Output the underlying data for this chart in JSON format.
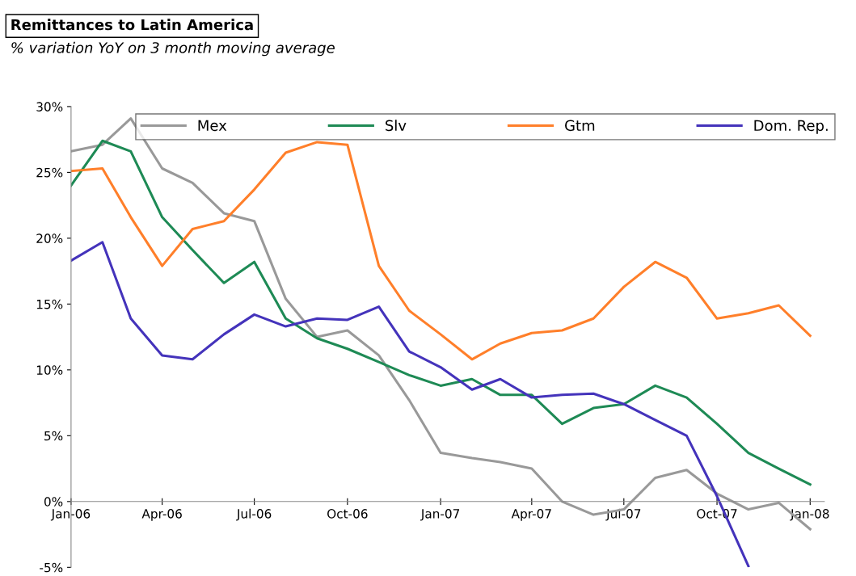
{
  "chart_data": {
    "type": "line",
    "title": "Remittances to Latin America",
    "subtitle": "% variation YoY on 3 month moving average",
    "x": [
      "2006-01",
      "2006-02",
      "2006-03",
      "2006-04",
      "2006-05",
      "2006-06",
      "2006-07",
      "2006-08",
      "2006-09",
      "2006-10",
      "2006-11",
      "2006-12",
      "2007-01",
      "2007-02",
      "2007-03",
      "2007-04",
      "2007-05",
      "2007-06",
      "2007-07",
      "2007-08",
      "2007-09",
      "2007-10",
      "2007-11",
      "2007-12",
      "2008-01"
    ],
    "series": [
      {
        "name": "Mex",
        "color": "#999999",
        "values": [
          26.6,
          27.1,
          29.1,
          25.3,
          24.2,
          21.9,
          21.3,
          15.4,
          12.5,
          13.0,
          11.1,
          7.7,
          3.7,
          3.3,
          3.0,
          2.5,
          0.0,
          -1.0,
          -0.6,
          1.8,
          2.4,
          0.6,
          -0.6,
          -0.1,
          -2.1
        ]
      },
      {
        "name": "Slv",
        "color": "#1e8a55",
        "values": [
          24.0,
          27.4,
          26.6,
          21.6,
          19.1,
          16.6,
          18.2,
          13.9,
          12.4,
          11.6,
          10.6,
          9.6,
          8.8,
          9.3,
          8.1,
          8.1,
          5.9,
          7.1,
          7.4,
          8.8,
          7.9,
          5.9,
          3.7,
          2.5,
          1.3
        ]
      },
      {
        "name": "Gtm",
        "color": "#ff7f2a",
        "values": [
          25.1,
          25.3,
          21.6,
          17.9,
          20.7,
          21.3,
          23.7,
          26.5,
          27.3,
          27.1,
          17.9,
          14.5,
          12.7,
          10.8,
          12.0,
          12.8,
          13.0,
          13.9,
          16.3,
          18.2,
          17.0,
          13.9,
          14.3,
          14.9,
          12.6
        ]
      },
      {
        "name": "Dom. Rep.",
        "color": "#4433bb",
        "values": [
          18.3,
          19.7,
          13.9,
          11.1,
          10.8,
          12.7,
          14.2,
          13.3,
          13.9,
          13.8,
          14.8,
          11.4,
          10.2,
          8.5,
          9.3,
          7.9,
          8.1,
          8.2,
          7.4,
          6.2,
          5.0,
          0.4,
          -4.9,
          null,
          null
        ]
      }
    ],
    "xlim": [
      "2006-01",
      "2008-01-15"
    ],
    "xticks": [
      {
        "value": "2006-01",
        "label": "Jan-06"
      },
      {
        "value": "2006-04",
        "label": "Apr-06"
      },
      {
        "value": "2006-07",
        "label": "Jul-06"
      },
      {
        "value": "2006-10",
        "label": "Oct-06"
      },
      {
        "value": "2007-01",
        "label": "Jan-07"
      },
      {
        "value": "2007-04",
        "label": "Apr-07"
      },
      {
        "value": "2007-07",
        "label": "Jul-07"
      },
      {
        "value": "2007-10",
        "label": "Oct-07"
      },
      {
        "value": "2008-01",
        "label": "Jan-08"
      }
    ],
    "ylim": [
      -5,
      30
    ],
    "yticks": [
      {
        "value": -5,
        "label": "-5%"
      },
      {
        "value": 0,
        "label": "0%"
      },
      {
        "value": 5,
        "label": "5%"
      },
      {
        "value": 10,
        "label": "10%"
      },
      {
        "value": 15,
        "label": "15%"
      },
      {
        "value": 20,
        "label": "20%"
      },
      {
        "value": 25,
        "label": "25%"
      },
      {
        "value": 30,
        "label": "30%"
      }
    ],
    "grid": false,
    "legend": "top",
    "marker": "none",
    "line_style": "solid"
  }
}
